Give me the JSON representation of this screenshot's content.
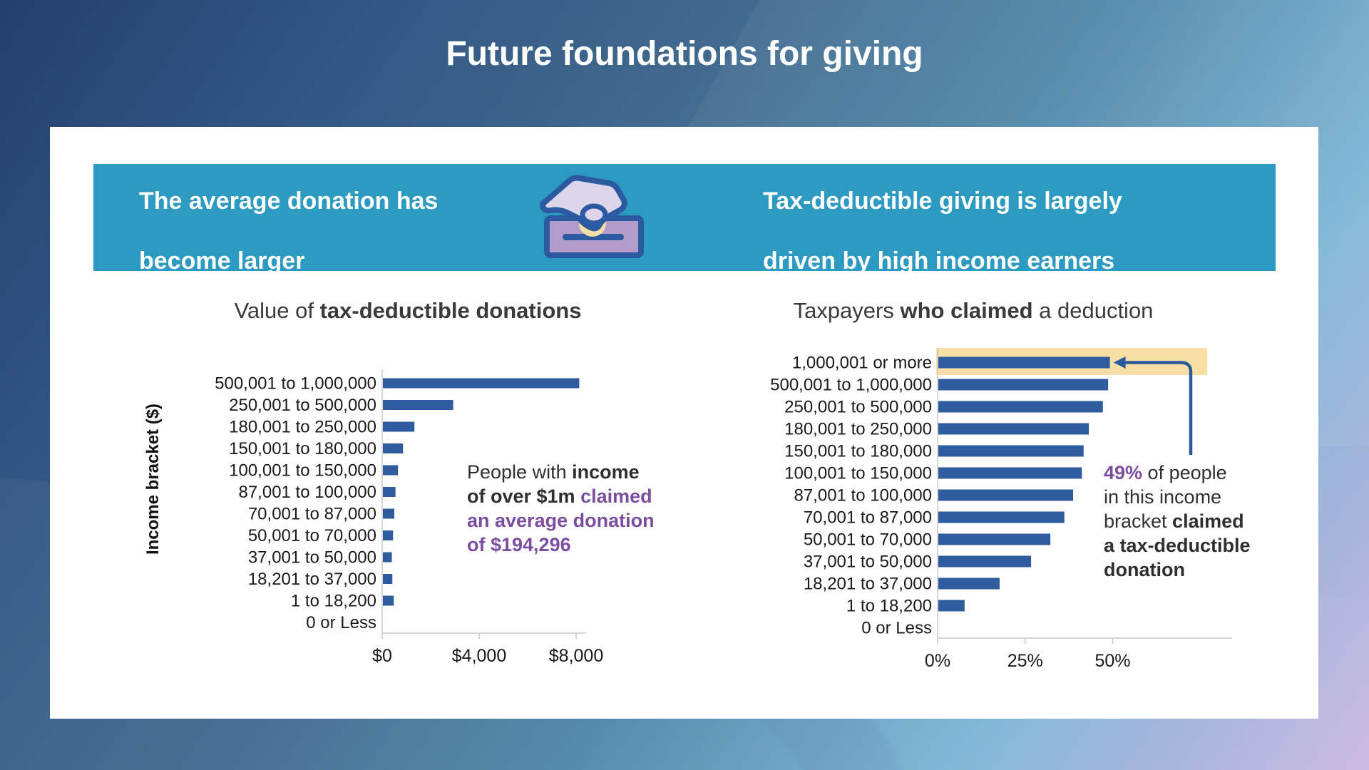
{
  "page_title": "Future foundations for giving",
  "banner": {
    "left_lines": [
      "The average donation has",
      "become larger"
    ],
    "right_lines": [
      "Tax-deductible giving is largely",
      "driven by high income earners"
    ],
    "icon": "donation-hand-coin-box-icon"
  },
  "colors": {
    "banner_teal": "#2D9AC2",
    "bar_blue": "#2E5C9E",
    "accent_purple": "#7C4EA0",
    "highlight_yellow": "#F8DFA6",
    "arrow_blue": "#2B5A9C",
    "axis_gray": "#C9C9C9",
    "text_dark": "#2F2F2F",
    "icon_hand": "#DDD6EA",
    "icon_box": "#B29DCA",
    "icon_coin": "#F6DFA4",
    "icon_outline": "#2B5AA0"
  },
  "chart_data": [
    {
      "type": "bar",
      "orientation": "horizontal",
      "title_parts": [
        {
          "text": "Value of ",
          "bold": false
        },
        {
          "text": "tax-deductible donations",
          "bold": true
        }
      ],
      "ylabel": "Income bracket ($)",
      "xlabel": "",
      "categories": [
        "500,001 to 1,000,000",
        "250,001 to 500,000",
        "180,001 to 250,000",
        "150,001 to 180,000",
        "100,001 to 150,000",
        "87,001 to 100,000",
        "70,001 to 87,000",
        "50,001 to 70,000",
        "37,001 to 50,000",
        "18,201 to 37,000",
        "1 to 18,200",
        "0 or Less"
      ],
      "values": [
        8100,
        2900,
        1300,
        830,
        620,
        520,
        470,
        420,
        370,
        390,
        450,
        0
      ],
      "x_ticks": {
        "values": [
          0,
          4000,
          8000
        ],
        "labels": [
          "$0",
          "$4,000",
          "$8,000"
        ]
      },
      "xlim": [
        0,
        8800
      ],
      "grid": false,
      "annotation_lines": [
        [
          [
            "People with ",
            "r"
          ],
          [
            "income",
            "b"
          ]
        ],
        [
          [
            "of over $1m ",
            "b"
          ],
          [
            "claimed",
            "p"
          ]
        ],
        [
          [
            "an average donation",
            "p"
          ]
        ],
        [
          [
            "of $194,296",
            "p"
          ]
        ]
      ]
    },
    {
      "type": "bar",
      "orientation": "horizontal",
      "title_parts": [
        {
          "text": "Taxpayers ",
          "bold": false
        },
        {
          "text": "who claimed",
          "bold": true
        },
        {
          "text": " a deduction",
          "bold": false
        }
      ],
      "ylabel": "",
      "xlabel": "",
      "categories": [
        "1,000,001 or more",
        "500,001 to 1,000,000",
        "250,001 to 500,000",
        "180,001 to 250,000",
        "150,001 to 180,000",
        "100,001 to 150,000",
        "87,001 to 100,000",
        "70,001 to 87,000",
        "50,001 to 70,000",
        "37,001 to 50,000",
        "18,201 to 37,000",
        "1 to 18,200",
        "0 or Less"
      ],
      "values": [
        49,
        48.5,
        47,
        43,
        41.5,
        41,
        38.5,
        36,
        32,
        26.5,
        17.5,
        7.5,
        0
      ],
      "x_ticks": {
        "values": [
          0,
          25,
          50
        ],
        "labels": [
          "0%",
          "25%",
          "50%"
        ]
      },
      "xlim": [
        0,
        57
      ],
      "grid": false,
      "highlighted_category": "1,000,001 or more",
      "annotation_lines": [
        [
          [
            "49%",
            "p"
          ],
          [
            " of people",
            "r"
          ]
        ],
        [
          [
            "in this income",
            "r"
          ]
        ],
        [
          [
            "bracket ",
            "r"
          ],
          [
            "claimed",
            "b"
          ]
        ],
        [
          [
            "a tax-deductible",
            "b"
          ]
        ],
        [
          [
            "donation",
            "b"
          ]
        ]
      ]
    }
  ]
}
